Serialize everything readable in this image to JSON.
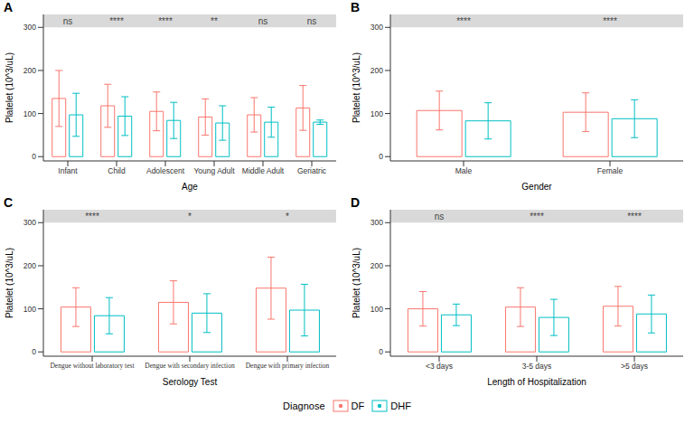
{
  "legend_title": "Diagnose",
  "chart_data": [
    {
      "type": "bar",
      "panel": "A",
      "x_label": "Age",
      "y_label": "Platelet (10^3/uL)",
      "categories": [
        "Infant",
        "Child",
        "Adolescent",
        "Young Adult",
        "Middle Adult",
        "Geriatric"
      ],
      "series": [
        {
          "name": "DF",
          "color": "#F8766D",
          "values": [
            135,
            118,
            105,
            92,
            97,
            113
          ],
          "errors": [
            65,
            50,
            45,
            42,
            40,
            52
          ]
        },
        {
          "name": "DHF",
          "color": "#00BFC4",
          "values": [
            97,
            94,
            84,
            78,
            80,
            80
          ],
          "errors": [
            50,
            45,
            42,
            40,
            35,
            5
          ]
        }
      ],
      "significance": [
        "ns",
        "****",
        "****",
        "**",
        "ns",
        "ns"
      ],
      "ylim": [
        -10,
        330
      ],
      "yticks": [
        0,
        100,
        200,
        300
      ]
    },
    {
      "type": "bar",
      "panel": "B",
      "x_label": "Gender",
      "y_label": "Platelet (10^3/uL)",
      "categories": [
        "Male",
        "Female"
      ],
      "series": [
        {
          "name": "DF",
          "color": "#F8766D",
          "values": [
            107,
            103
          ],
          "errors": [
            45,
            45
          ]
        },
        {
          "name": "DHF",
          "color": "#00BFC4",
          "values": [
            83,
            88
          ],
          "errors": [
            42,
            44
          ]
        }
      ],
      "significance": [
        "****",
        "****"
      ],
      "ylim": [
        -10,
        330
      ],
      "yticks": [
        0,
        100,
        200,
        300
      ]
    },
    {
      "type": "bar",
      "panel": "C",
      "x_label": "Serology Test",
      "y_label": "Platelet (10^3/uL)",
      "categories": [
        "Dengue without laboratory test",
        "Dengue with secondary infection",
        "Dengue with primary infection"
      ],
      "series": [
        {
          "name": "DF",
          "color": "#F8766D",
          "values": [
            104,
            115,
            148
          ],
          "errors": [
            45,
            50,
            72
          ]
        },
        {
          "name": "DHF",
          "color": "#00BFC4",
          "values": [
            84,
            90,
            97
          ],
          "errors": [
            42,
            45,
            60
          ]
        }
      ],
      "significance": [
        "****",
        "*",
        "*"
      ],
      "ylim": [
        -10,
        330
      ],
      "yticks": [
        0,
        100,
        200,
        300
      ]
    },
    {
      "type": "bar",
      "panel": "D",
      "x_label": "Length of Hospitalization",
      "y_label": "Platelet (10^3/uL)",
      "categories": [
        "<3 days",
        "3-5 days",
        ">5 days"
      ],
      "series": [
        {
          "name": "DF",
          "color": "#F8766D",
          "values": [
            100,
            104,
            106
          ],
          "errors": [
            40,
            45,
            46
          ]
        },
        {
          "name": "DHF",
          "color": "#00BFC4",
          "values": [
            86,
            80,
            88
          ],
          "errors": [
            25,
            42,
            44
          ]
        }
      ],
      "significance": [
        "ns",
        "****",
        "****"
      ],
      "ylim": [
        -10,
        330
      ],
      "yticks": [
        0,
        100,
        200,
        300
      ]
    }
  ]
}
